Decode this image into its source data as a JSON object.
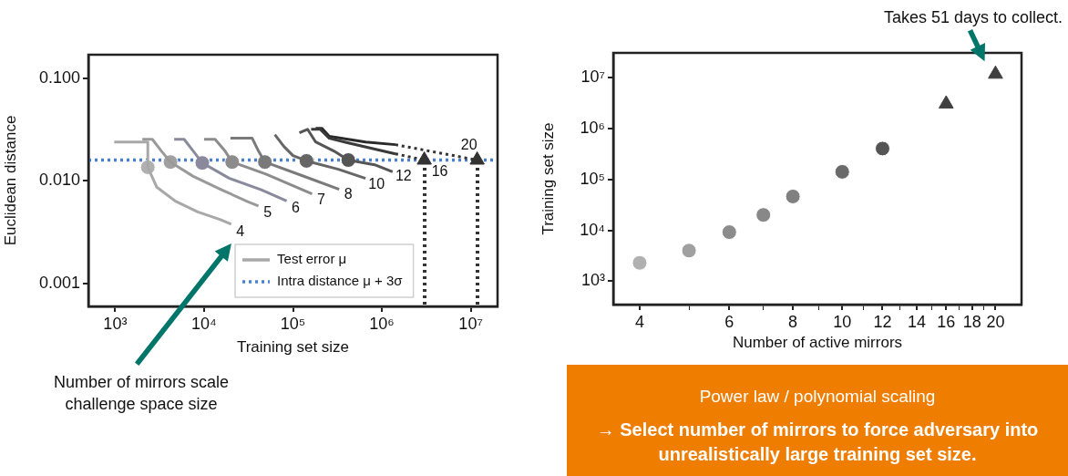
{
  "chart_data": [
    {
      "type": "line",
      "xlabel": "Training set size",
      "ylabel": "Euclidean distance",
      "log": "xy",
      "legend": "bottom right",
      "marker": "none",
      "xlim": [
        500,
        20000000
      ],
      "ylim": [
        0.0006,
        0.17
      ],
      "xticks": [
        {
          "value": 1000,
          "label": "10³"
        },
        {
          "value": 10000,
          "label": "10⁴"
        },
        {
          "value": 100000,
          "label": "10⁵"
        },
        {
          "value": 1000000,
          "label": "10⁶"
        },
        {
          "value": 10000000,
          "label": "10⁷"
        }
      ],
      "yticks": [
        0.001,
        {
          "value": 0.01,
          "label": "0.010"
        },
        {
          "value": 0.1,
          "label": "0.100"
        }
      ],
      "ref_lines": [
        {
          "axis": "y",
          "value": 0.016,
          "label": "Intra distance μ + 3σ",
          "color": "#4a7fcf",
          "line_style": "dotted"
        }
      ],
      "series": [
        {
          "type": "line",
          "name": "Test error μ",
          "color": "#a8a8a8",
          "x": [
            977,
            2330,
            2330,
            2940,
            4710,
            8490,
            15300,
            20200
          ],
          "values": [
            0.024,
            0.024,
            0.0136,
            0.0087,
            0.0064,
            0.005,
            0.0042,
            0.0038
          ]
        },
        {
          "type": "line",
          "color": "#9a9a9a",
          "x": [
            2020,
            2620,
            3310,
            4190,
            7550,
            15300,
            30900,
            40900
          ],
          "values": [
            0.0255,
            0.0255,
            0.0196,
            0.0153,
            0.0111,
            0.0083,
            0.0063,
            0.0057
          ]
        },
        {
          "type": "line",
          "color": "#8a8a9c",
          "x": [
            4610,
            5970,
            7550,
            9550,
            19300,
            44000,
            84900
          ],
          "values": [
            0.0255,
            0.0255,
            0.0196,
            0.015,
            0.0106,
            0.0082,
            0.0064
          ]
        },
        {
          "type": "line",
          "color": "#8c8c8c",
          "x": [
            10000,
            13300,
            17200,
            20700,
            49500,
            164000
          ],
          "values": [
            0.0255,
            0.0255,
            0.0196,
            0.0153,
            0.0117,
            0.0075
          ]
        },
        {
          "type": "line",
          "color": "#7a7a7a",
          "x": [
            19800,
            34800,
            40900,
            48300,
            126000,
            331000
          ],
          "values": [
            0.0261,
            0.0261,
            0.0196,
            0.0153,
            0.0113,
            0.0083
          ]
        },
        {
          "type": "line",
          "color": "#666666",
          "x": [
            62500,
            79100,
            100000,
            142000,
            324000,
            655000
          ],
          "values": [
            0.0283,
            0.0217,
            0.0177,
            0.0157,
            0.013,
            0.0106
          ]
        },
        {
          "type": "line",
          "color": "#555555",
          "x": [
            118000,
            146000,
            180000,
            288000,
            419000,
            828000,
            1320000
          ],
          "values": [
            0.0295,
            0.0319,
            0.024,
            0.0196,
            0.016,
            0.0144,
            0.0123
          ]
        },
        {
          "type": "line",
          "color": "#3a3a3a",
          "x": [
            160000,
            202000,
            256000,
            409000,
            1420000
          ],
          "values": [
            0.0319,
            0.0319,
            0.0261,
            0.0236,
            0.0184
          ]
        },
        {
          "type": "line",
          "color": "#2a2a2a",
          "x": [
            180000,
            212000,
            256000,
            655000,
            1420000
          ],
          "values": [
            0.0326,
            0.0326,
            0.0272,
            0.024,
            0.0226
          ]
        },
        {
          "type": "line",
          "color": "#333333",
          "line_style": "dotted",
          "x": [
            1420000,
            3000000
          ],
          "values": [
            0.0184,
            0.016
          ]
        },
        {
          "type": "line",
          "color": "#333333",
          "line_style": "dotted",
          "x": [
            1420000,
            11800000
          ],
          "values": [
            0.0226,
            0.016
          ]
        },
        {
          "type": "scatter",
          "marker": "circle",
          "x": [
            2330,
            4190,
            9550,
            20700,
            48300,
            142000,
            419000
          ],
          "values": [
            0.0136,
            0.0153,
            0.015,
            0.0153,
            0.0153,
            0.0157,
            0.016
          ],
          "colors": [
            "#b0b0b0",
            "#a0a0a0",
            "#8a8a9c",
            "#8c8c8c",
            "#7a7a7a",
            "#666666",
            "#555555"
          ]
        },
        {
          "type": "scatter",
          "marker": "triangle",
          "color": "#333333",
          "x": [
            3000000,
            11800000
          ],
          "values": [
            0.016,
            0.016
          ]
        }
      ],
      "annotations": [
        {
          "text": "4",
          "x": 20200,
          "y": 0.0038
        },
        {
          "text": "5",
          "x": 40900,
          "y": 0.0057
        },
        {
          "text": "6",
          "x": 84900,
          "y": 0.0064
        },
        {
          "text": "7",
          "x": 164000,
          "y": 0.0075
        },
        {
          "text": "8",
          "x": 331000,
          "y": 0.0083
        },
        {
          "text": "10",
          "x": 655000,
          "y": 0.0106
        },
        {
          "text": "12",
          "x": 1320000,
          "y": 0.0123
        },
        {
          "text": "16",
          "x": 3000000,
          "y": 0.016
        },
        {
          "text": "20",
          "x": 11800000,
          "y": 0.016
        },
        "Number of mirrors scale challenge space size"
      ]
    },
    {
      "type": "scatter",
      "xlabel": "Number of active mirrors",
      "ylabel": "Training set size",
      "log": "xy",
      "xlim": [
        3.55,
        22.5
      ],
      "ylim": [
        350,
        30000000
      ],
      "xticks": [
        4,
        {
          "value": 5,
          "label": null
        },
        6,
        {
          "value": 7,
          "label": null
        },
        8,
        {
          "value": 9,
          "label": null
        },
        10,
        {
          "value": 11,
          "label": null
        },
        12,
        {
          "value": 13,
          "label": null
        },
        14,
        {
          "value": 15,
          "label": null
        },
        16,
        {
          "value": 17,
          "label": null
        },
        18,
        {
          "value": 19,
          "label": null
        },
        20
      ],
      "yticks": [
        {
          "value": 1000,
          "label": "10³"
        },
        {
          "value": 10000,
          "label": "10⁴"
        },
        {
          "value": 100000,
          "label": "10⁵"
        },
        {
          "value": 1000000,
          "label": "10⁶"
        },
        {
          "value": 10000000,
          "label": "10⁷"
        }
      ],
      "series": [
        {
          "type": "scatter",
          "marker": "circle",
          "x": [
            4,
            5,
            6,
            7,
            8,
            10,
            12
          ],
          "values": [
            2300,
            4000,
            9200,
            20000,
            46000,
            140000,
            400000
          ],
          "colors": [
            "#b0b0b0",
            "#a0a0a0",
            "#8c8c8c",
            "#888888",
            "#808080",
            "#6a6a6a",
            "#555555"
          ]
        },
        {
          "type": "scatter",
          "marker": "triangle",
          "color": "#404040",
          "x": [
            16,
            20
          ],
          "values": [
            3000000,
            11500000
          ]
        }
      ],
      "annotations": [
        {
          "text": "Takes 51 days to collect.",
          "x": 20,
          "y": 11500000
        }
      ]
    },
    {
      "type": "other",
      "title": "Power law / polynomial scaling",
      "annotations": [
        "→ Select number of mirrors to force adversary into unrealistically large training set size."
      ]
    }
  ]
}
